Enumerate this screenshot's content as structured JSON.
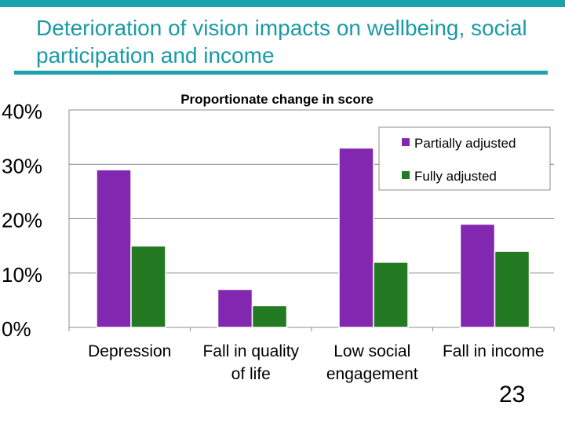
{
  "slide": {
    "title": "Deterioration of vision impacts on wellbeing, social participation and income",
    "page_number": "23"
  },
  "colors": {
    "accent": "#1aa3ad",
    "partially_adjusted": "#8228b0",
    "fully_adjusted": "#237a23"
  },
  "chart_data": {
    "type": "bar",
    "title": "Proportionate change in score",
    "categories": [
      [
        "Depression"
      ],
      [
        "Fall in quality",
        "of life"
      ],
      [
        "Low social",
        "engagement"
      ],
      [
        "Fall in income"
      ]
    ],
    "series": [
      {
        "name": "Partially adjusted",
        "values": [
          29,
          7,
          33,
          19
        ]
      },
      {
        "name": "Fully adjusted",
        "values": [
          15,
          4,
          12,
          14
        ]
      }
    ],
    "ylim": [
      0,
      40
    ],
    "yticks": [
      0,
      10,
      20,
      30,
      40
    ],
    "ytick_labels": [
      "0%",
      "10%",
      "20%",
      "30%",
      "40%"
    ],
    "grid": true,
    "legend": "top-right"
  }
}
